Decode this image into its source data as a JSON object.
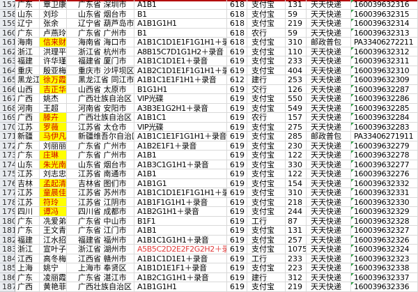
{
  "app": {
    "kind": "spreadsheet-order-list",
    "visible_row_range": "157-187"
  },
  "colors": {
    "highlight_bg": "#ffff00",
    "highlight_text": "#d10000",
    "alert_text": "#e03a3a",
    "top_band": "#b40000",
    "flag_green": "#2f9e44",
    "header_bg": "#e9ecf0",
    "gridline": "#d9d9d9"
  },
  "rows": [
    {
      "num": "157",
      "province": "广东",
      "name": "覃卫康",
      "hl": false,
      "location": "广东省 深圳市",
      "pkg": "A1B1",
      "pkgRed": false,
      "batch": "618",
      "pay": "支付宝",
      "amt": "131",
      "ship": "天天快递",
      "track": "160039632316",
      "flag": true
    },
    {
      "num": "158",
      "province": "山东",
      "name": "刘珍",
      "hl": false,
      "location": "山东省 烟台市",
      "pkg": "B1",
      "pkgRed": false,
      "batch": "618",
      "pay": "支付宝",
      "amt": "59",
      "ship": "天天快递",
      "track": "160039632315",
      "flag": true
    },
    {
      "num": "159",
      "province": "辽宁",
      "name": "张余",
      "hl": false,
      "location": "辽宁省 葫芦岛市",
      "pkg": "A1B1G1H1",
      "pkgRed": false,
      "batch": "618",
      "pay": "支付宝",
      "amt": "219",
      "ship": "天天快递",
      "track": "160039632314",
      "flag": true
    },
    {
      "num": "160",
      "province": "广东",
      "name": "卢燕玲",
      "hl": false,
      "location": "广东省 广州市",
      "pkg": "B1",
      "pkgRed": false,
      "batch": "618",
      "pay": "农行",
      "amt": "59",
      "ship": "天天快递",
      "track": "160039632313",
      "flag": true
    },
    {
      "num": "161",
      "province": "海南",
      "name": "信来财",
      "hl": true,
      "location": "海南省 海口市",
      "pkg": "A1B1C1D1E1F1G1H1＋录音",
      "pkgRed": false,
      "batch": "618",
      "pay": "支付宝",
      "amt": "310",
      "ship": "邮政普包",
      "track": "PA33406272211",
      "flag": false
    },
    {
      "num": "162",
      "province": "浙江",
      "name": "洪理平",
      "hl": false,
      "location": "浙江省 杭州市",
      "pkg": "A8B15C7D1G1H2＋录音",
      "pkgRed": false,
      "batch": "619",
      "pay": "支付宝",
      "amt": "110",
      "ship": "天天快递",
      "track": "160039632312",
      "flag": true
    },
    {
      "num": "163",
      "province": "福建",
      "name": "许华瑾",
      "hl": false,
      "location": "福建省 厦门市",
      "pkg": "A1B1C1D1E1＋录音",
      "pkgRed": false,
      "batch": "619",
      "pay": "支付宝",
      "amt": "233",
      "ship": "天天快递",
      "track": "160039632311",
      "flag": true
    },
    {
      "num": "164",
      "province": "重庆",
      "name": "殷亚梅",
      "hl": false,
      "location": "重庆市 沙坪坝区",
      "pkg": "A1B2C1D1E1F1G1H1＋录音",
      "pkgRed": false,
      "batch": "619",
      "pay": "支付宝",
      "amt": "404",
      "ship": "天天快递",
      "track": "160039632310",
      "flag": true
    },
    {
      "num": "165",
      "province": "黑龙江",
      "name": "徐万霞",
      "hl": true,
      "location": "黑龙江省 同江市",
      "pkg": "A1B1C1E1F1H1＋录音",
      "pkgRed": false,
      "batch": "612",
      "pay": "建行",
      "amt": "253",
      "ship": "天天快递",
      "track": "160039632309",
      "flag": true
    },
    {
      "num": "166",
      "province": "山西",
      "name": "吉正华",
      "hl": true,
      "location": "山西省 太原市",
      "pkg": "B1G1H1",
      "pkgRed": false,
      "batch": "619",
      "pay": "交行",
      "amt": "126",
      "ship": "天天快递",
      "track": "160039632287",
      "flag": true
    },
    {
      "num": "167",
      "province": "广西",
      "name": "姚杰",
      "hl": false,
      "location": "广西壮族自治区",
      "pkg": "VIP光碟",
      "pkgRed": false,
      "batch": "619",
      "pay": "支付宝",
      "amt": "550",
      "ship": "天天快递",
      "track": "160039632286",
      "flag": true
    },
    {
      "num": "168",
      "province": "河南",
      "name": "王超",
      "hl": false,
      "location": "河南省 安阳市",
      "pkg": "A3B3E1G2H1＋录音",
      "pkgRed": false,
      "batch": "619",
      "pay": "支付宝",
      "amt": "549",
      "ship": "天天快递",
      "track": "160039632285",
      "flag": true
    },
    {
      "num": "169",
      "province": "广西",
      "name": "滕卉",
      "hl": true,
      "location": "广西壮族自治区",
      "pkg": "A1B1C1",
      "pkgRed": false,
      "batch": "619",
      "pay": "农行",
      "amt": "157",
      "ship": "天天快递",
      "track": "160039632284",
      "flag": true
    },
    {
      "num": "170",
      "province": "江苏",
      "name": "罗薇",
      "hl": true,
      "location": "江苏省 太仓市",
      "pkg": "VIP光碟",
      "pkgRed": false,
      "batch": "619",
      "pay": "支付宝",
      "amt": "275",
      "ship": "天天快递",
      "track": "160039632283",
      "flag": true
    },
    {
      "num": "171",
      "province": "新疆",
      "name": "马伊凡",
      "hl": true,
      "location": "新疆维吾尔自治区",
      "pkg": "A1B1C1E1F1G1H1＋录音",
      "pkgRed": false,
      "batch": "619",
      "pay": "支付宝",
      "amt": "285",
      "ship": "邮政普包",
      "track": "PA33406271911",
      "flag": false
    },
    {
      "num": "172",
      "province": "广东",
      "name": "刘丽丽",
      "hl": false,
      "location": "广东省 广州市",
      "pkg": "A1B2E1F1＋录音",
      "pkgRed": false,
      "batch": "619",
      "pay": "支付宝",
      "amt": "230",
      "ship": "天天快递",
      "track": "160039632279",
      "flag": true
    },
    {
      "num": "173",
      "province": "广东",
      "name": "庄琳",
      "hl": true,
      "location": "广东省 广州市",
      "pkg": "A1B1",
      "pkgRed": false,
      "batch": "619",
      "pay": "支付宝",
      "amt": "122",
      "ship": "天天快递",
      "track": "160039632278",
      "flag": true
    },
    {
      "num": "174",
      "province": "山东",
      "name": "朱光南",
      "hl": true,
      "location": "山东省 烟台市",
      "pkg": "A1B3C1G1H1＋录音",
      "pkgRed": false,
      "batch": "619",
      "pay": "支付宝",
      "amt": "330",
      "ship": "天天快递",
      "track": "160039632277",
      "flag": true
    },
    {
      "num": "175",
      "province": "江苏",
      "name": "刘志忠",
      "hl": false,
      "location": "江苏省 南通市",
      "pkg": "A1B1",
      "pkgRed": false,
      "batch": "619",
      "pay": "支付宝",
      "amt": "122",
      "ship": "天天快递",
      "track": "160039632276",
      "flag": true
    },
    {
      "num": "176",
      "province": "吉林",
      "name": "孟起清",
      "hl": true,
      "location": "吉林省 图们市",
      "pkg": "A1B1G1",
      "pkgRed": false,
      "batch": "619",
      "pay": "支付宝",
      "amt": "154",
      "ship": "天天快递",
      "track": "160039632332",
      "flag": true
    },
    {
      "num": "177",
      "province": "江苏",
      "name": "童晨佳",
      "hl": true,
      "location": "江苏省 苏州市",
      "pkg": "A1B1C1D1E1F1G1H1＋录音",
      "pkgRed": false,
      "batch": "619",
      "pay": "支付宝",
      "amt": "310",
      "ship": "天天快递",
      "track": "160039632331",
      "flag": true
    },
    {
      "num": "178",
      "province": "江苏",
      "name": "符玲",
      "hl": true,
      "location": "江苏省 江阴市",
      "pkg": "A1B1F1G1H1＋录音",
      "pkgRed": false,
      "batch": "619",
      "pay": "支付宝",
      "amt": "218",
      "ship": "天天快递",
      "track": "160039632330",
      "flag": true
    },
    {
      "num": "179",
      "province": "四川",
      "name": "谭冯",
      "hl": true,
      "location": "四川省 成都市",
      "pkg": "A1B2G1H1＋录音",
      "pkgRed": false,
      "batch": "619",
      "pay": "支付宝",
      "amt": "244",
      "ship": "天天快递",
      "track": "160039632329",
      "flag": true
    },
    {
      "num": "180",
      "province": "广东",
      "name": "冼爱弟",
      "hl": false,
      "location": "广东省 中山市",
      "pkg": "B1F1",
      "pkgRed": false,
      "batch": "619",
      "pay": "工行",
      "amt": "87",
      "ship": "天天快递",
      "track": "160039632328",
      "flag": true
    },
    {
      "num": "181",
      "province": "广东",
      "name": "王文青",
      "hl": false,
      "location": "广东省 江门市",
      "pkg": "A1B1",
      "pkgRed": false,
      "batch": "619",
      "pay": "支付宝",
      "amt": "131",
      "ship": "天天快递",
      "track": "160039632327",
      "flag": true
    },
    {
      "num": "182",
      "province": "福建",
      "name": "江水招",
      "hl": false,
      "location": "福建省 福州市",
      "pkg": "A1B1C1G1H1＋录音",
      "pkgRed": false,
      "batch": "619",
      "pay": "支付宝",
      "amt": "257",
      "ship": "天天快递",
      "track": "160039632326",
      "flag": true
    },
    {
      "num": "183",
      "province": "浙江",
      "name": "宣叶子",
      "hl": false,
      "location": "浙江省 湖州市",
      "pkg": "A5B5C2D2E2F2G2H2＋录音",
      "pkgRed": true,
      "batch": "619",
      "pay": "支付宝",
      "amt": "1075",
      "ship": "天天快递",
      "track": "160039632324",
      "flag": true
    },
    {
      "num": "184",
      "province": "江西",
      "name": "高冬梅",
      "hl": false,
      "location": "江西省 赣州市",
      "pkg": "A1B1C1D1E1＋录音",
      "pkgRed": false,
      "batch": "619",
      "pay": "工行",
      "amt": "233",
      "ship": "天天快递",
      "track": "160039632323",
      "flag": true
    },
    {
      "num": "185",
      "province": "上海",
      "name": "姚宁",
      "hl": false,
      "location": "上海市 奉贤区",
      "pkg": "A1B1D1E1F1＋录音",
      "pkgRed": false,
      "batch": "619",
      "pay": "支付宝",
      "amt": "223",
      "ship": "天天快递",
      "track": "160039632338",
      "flag": true
    },
    {
      "num": "186",
      "province": "广东",
      "name": "凌丽霞",
      "hl": false,
      "location": "广东省 湛江市",
      "pkg": "A1B2C1G1H1＋录音",
      "pkgRed": false,
      "batch": "619",
      "pay": "建行",
      "amt": "312",
      "ship": "天天快递",
      "track": "160039632337",
      "flag": true
    },
    {
      "num": "187",
      "province": "广西",
      "name": "黄艳菲",
      "hl": false,
      "location": "广西壮族自治区",
      "pkg": "A1B1G1H1",
      "pkgRed": false,
      "batch": "619",
      "pay": "支付宝",
      "amt": "219",
      "ship": "天天快递",
      "track": "160039632336",
      "flag": true
    }
  ]
}
